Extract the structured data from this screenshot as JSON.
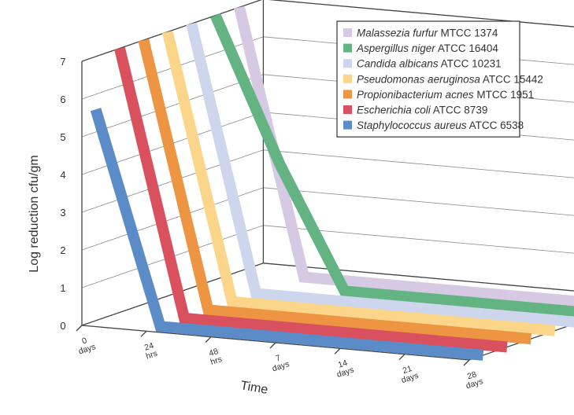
{
  "chart_data": {
    "type": "line",
    "style": "3d-ribbon",
    "ylabel": "Log reduction cfu/gm",
    "xlabel": "Time",
    "ylim": [
      0,
      7
    ],
    "yticks": [
      "0",
      "1",
      "2",
      "3",
      "4",
      "5",
      "6",
      "7"
    ],
    "categories": [
      {
        "top": "0",
        "bottom": "days"
      },
      {
        "top": "24",
        "bottom": "hrs"
      },
      {
        "top": "48",
        "bottom": "hrs"
      },
      {
        "top": "7",
        "bottom": "days"
      },
      {
        "top": "14",
        "bottom": "days"
      },
      {
        "top": "21",
        "bottom": "days"
      },
      {
        "top": "28",
        "bottom": "days"
      }
    ],
    "series": [
      {
        "name": "Staphylococcus aureus",
        "strain": " ATCC 6538",
        "color": "#5b8cc8",
        "values": [
          5.6,
          0,
          0,
          0,
          0,
          0,
          0
        ]
      },
      {
        "name": "Escherichia coli",
        "strain": " ATCC 8739",
        "color": "#d9505e",
        "values": [
          7,
          0,
          0,
          0,
          0,
          0,
          0
        ]
      },
      {
        "name": "Propionibacterium acnes",
        "strain": " MTCC 1951",
        "color": "#ee9544",
        "values": [
          7,
          0,
          0,
          0,
          0,
          0,
          0
        ]
      },
      {
        "name": "Pseudomonas aeruginosa",
        "strain": " ATCC 15442",
        "color": "#fbd68a",
        "values": [
          7,
          0,
          0,
          0,
          0,
          0,
          0
        ]
      },
      {
        "name": "Candida albicans",
        "strain": " ATCC 10231",
        "color": "#cdd6ec",
        "values": [
          7,
          0,
          0,
          0,
          0,
          0,
          0
        ]
      },
      {
        "name": "Aspergillus niger",
        "strain": " ATCC 16404",
        "color": "#63b383",
        "values": [
          7,
          3.2,
          0,
          0,
          0,
          0,
          0
        ]
      },
      {
        "name": "Malassezia furfur",
        "strain": " MTCC 1374",
        "color": "#d6c9e3",
        "values": [
          7,
          0,
          0,
          0,
          0,
          0,
          0
        ]
      }
    ],
    "legend_position": "top-right"
  }
}
